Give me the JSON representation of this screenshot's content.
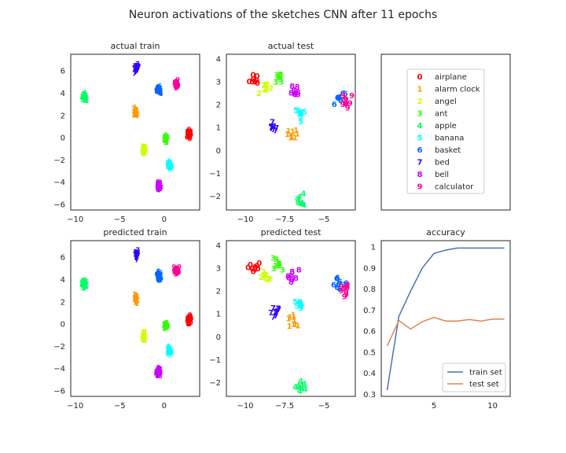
{
  "figure": {
    "title": "Neuron activations of the sketches CNN after 11 epochs"
  },
  "legend": {
    "classes": [
      "airplane",
      "alarm clock",
      "angel",
      "ant",
      "apple",
      "banana",
      "basket",
      "bed",
      "bell",
      "calculator"
    ],
    "digits": [
      "0",
      "1",
      "2",
      "3",
      "4",
      "5",
      "6",
      "7",
      "8",
      "9"
    ],
    "colors": [
      "#ff0000",
      "#ff9900",
      "#ccff00",
      "#33ff00",
      "#00ff66",
      "#00ffff",
      "#0066ff",
      "#3300ff",
      "#cc00ff",
      "#ff0099"
    ]
  },
  "chart_data": [
    {
      "type": "scatter",
      "title": "actual train",
      "xlim": [
        -10.5,
        4
      ],
      "ylim": [
        -6.5,
        7.5
      ],
      "xticks": [
        -10,
        -5,
        0
      ],
      "yticks": [
        -6,
        -4,
        -2,
        0,
        2,
        4,
        6
      ],
      "clusters": [
        {
          "label": "0",
          "center": [
            2.8,
            0.2
          ]
        },
        {
          "label": "1",
          "center": [
            -3.2,
            2.1
          ]
        },
        {
          "label": "2",
          "center": [
            -2.3,
            -1.3
          ]
        },
        {
          "label": "3",
          "center": [
            0.2,
            -0.3
          ]
        },
        {
          "label": "4",
          "center": [
            -9,
            3.4
          ]
        },
        {
          "label": "5",
          "center": [
            0.6,
            -2.6
          ]
        },
        {
          "label": "6",
          "center": [
            -0.6,
            4.1
          ]
        },
        {
          "label": "7",
          "center": [
            -3.1,
            6.0
          ]
        },
        {
          "label": "8",
          "center": [
            -0.6,
            -4.5
          ]
        },
        {
          "label": "9",
          "center": [
            1.4,
            4.6
          ]
        }
      ]
    },
    {
      "type": "scatter",
      "title": "actual test",
      "xlim": [
        -11.2,
        -3.0
      ],
      "ylim": [
        -2.6,
        4.2
      ],
      "xticks": [
        -10.0,
        -7.5,
        -5.0
      ],
      "yticks": [
        -2,
        -1,
        0,
        1,
        2,
        3,
        4
      ],
      "clusters": [
        {
          "label": "0",
          "center": [
            -9.5,
            3.0
          ]
        },
        {
          "label": "1",
          "center": [
            -7.0,
            0.6
          ]
        },
        {
          "label": "2",
          "center": [
            -8.7,
            2.6
          ]
        },
        {
          "label": "3",
          "center": [
            -8.0,
            3.1
          ]
        },
        {
          "label": "4",
          "center": [
            -6.5,
            -2.3
          ]
        },
        {
          "label": "5",
          "center": [
            -6.6,
            1.4
          ]
        },
        {
          "label": "6",
          "center": [
            -4.0,
            2.2
          ]
        },
        {
          "label": "7",
          "center": [
            -8.2,
            1.0
          ]
        },
        {
          "label": "8",
          "center": [
            -6.9,
            2.5
          ]
        },
        {
          "label": "9",
          "center": [
            -3.6,
            2.0
          ]
        }
      ]
    },
    {
      "type": "scatter",
      "title": "predicted train",
      "xlim": [
        -10.5,
        4
      ],
      "ylim": [
        -6.5,
        7.5
      ],
      "xticks": [
        -10,
        -5,
        0
      ],
      "yticks": [
        -6,
        -4,
        -2,
        0,
        2,
        4,
        6
      ],
      "clusters": [
        {
          "label": "0",
          "center": [
            2.8,
            0.2
          ]
        },
        {
          "label": "1",
          "center": [
            -3.2,
            2.1
          ]
        },
        {
          "label": "2",
          "center": [
            -2.3,
            -1.3
          ]
        },
        {
          "label": "3",
          "center": [
            0.2,
            -0.3
          ]
        },
        {
          "label": "4",
          "center": [
            -9,
            3.4
          ]
        },
        {
          "label": "5",
          "center": [
            0.6,
            -2.6
          ]
        },
        {
          "label": "6",
          "center": [
            -0.6,
            4.1
          ]
        },
        {
          "label": "7",
          "center": [
            -3.1,
            6.0
          ]
        },
        {
          "label": "8",
          "center": [
            -0.6,
            -4.5
          ]
        },
        {
          "label": "9",
          "center": [
            1.4,
            4.6
          ]
        }
      ]
    },
    {
      "type": "scatter",
      "title": "predicted test",
      "xlim": [
        -11.2,
        -3.0
      ],
      "ylim": [
        -2.6,
        4.2
      ],
      "xticks": [
        -10.0,
        -7.5,
        -5.0
      ],
      "yticks": [
        -2,
        -1,
        0,
        1,
        2,
        3,
        4
      ],
      "clusters": [
        {
          "label": "0",
          "center": [
            -9.5,
            3.0
          ]
        },
        {
          "label": "1",
          "center": [
            -7.0,
            0.6
          ]
        },
        {
          "label": "2",
          "center": [
            -8.7,
            2.6
          ]
        },
        {
          "label": "3",
          "center": [
            -8.0,
            3.1
          ]
        },
        {
          "label": "4",
          "center": [
            -6.5,
            -2.3
          ]
        },
        {
          "label": "5",
          "center": [
            -6.6,
            1.4
          ]
        },
        {
          "label": "6",
          "center": [
            -4.0,
            2.2
          ]
        },
        {
          "label": "7",
          "center": [
            -8.2,
            1.0
          ]
        },
        {
          "label": "8",
          "center": [
            -6.9,
            2.5
          ]
        },
        {
          "label": "9",
          "center": [
            -3.6,
            2.0
          ]
        }
      ]
    },
    {
      "type": "line",
      "title": "accuracy",
      "xlim": [
        0.5,
        11.5
      ],
      "ylim": [
        0.29,
        1.03
      ],
      "xticks": [
        5,
        10
      ],
      "yticks": [
        0.3,
        0.4,
        0.5,
        0.6,
        0.7,
        0.8,
        0.9,
        1.0
      ],
      "x": [
        1,
        2,
        3,
        4,
        5,
        6,
        7,
        8,
        9,
        10,
        11
      ],
      "series": [
        {
          "name": "train set",
          "color": "#4c72b0",
          "values": [
            0.32,
            0.67,
            0.79,
            0.9,
            0.97,
            0.985,
            0.995,
            0.995,
            0.995,
            0.995,
            0.995
          ]
        },
        {
          "name": "test set",
          "color": "#dd8452",
          "values": [
            0.53,
            0.65,
            0.61,
            0.645,
            0.665,
            0.648,
            0.648,
            0.655,
            0.648,
            0.657,
            0.657
          ]
        }
      ],
      "legend_position": "lower-right"
    }
  ]
}
